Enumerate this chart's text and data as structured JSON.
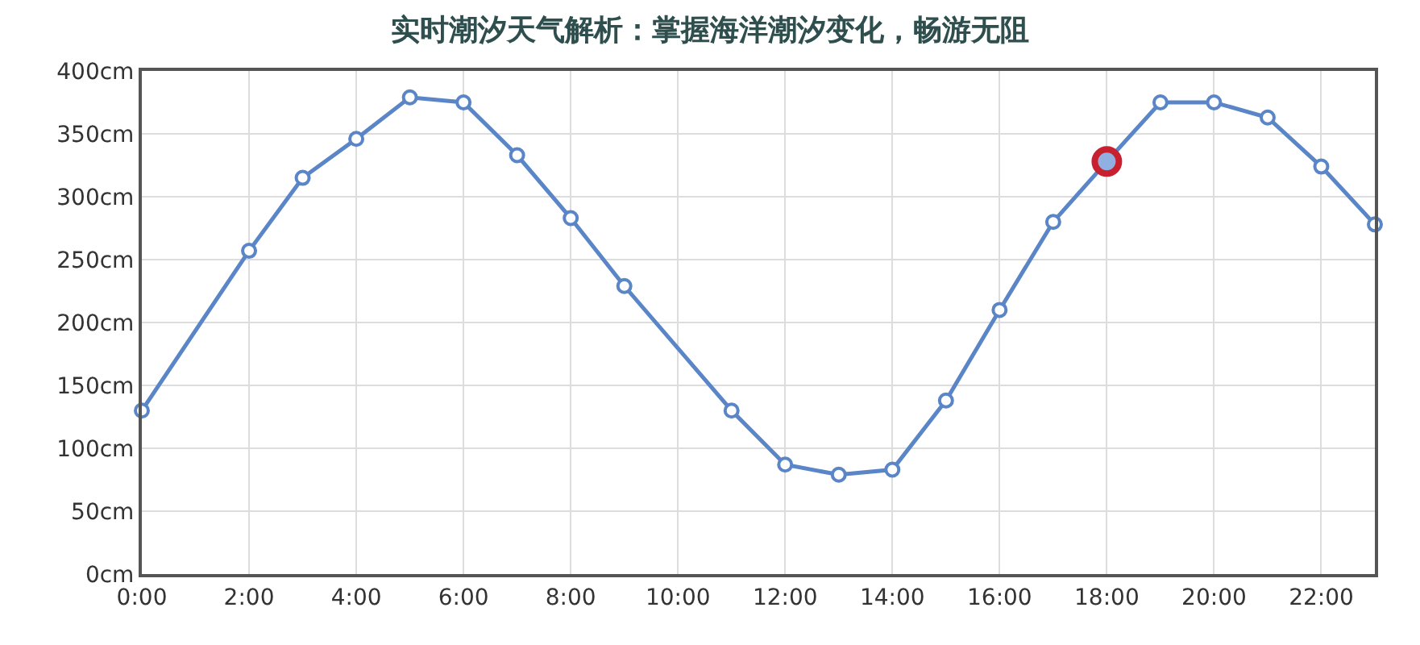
{
  "chart_data": {
    "type": "line",
    "title": "实时潮汐天气解析：掌握海洋潮汐变化，畅游无阻",
    "x": [
      0,
      1,
      2,
      3,
      4,
      5,
      6,
      7,
      8,
      9,
      10,
      11,
      12,
      13,
      14,
      15,
      16,
      17,
      18,
      19,
      20,
      21,
      22,
      23
    ],
    "series": [
      {
        "color": "#5a86c8",
        "values": [
          130,
          null,
          257,
          315,
          346,
          379,
          375,
          333,
          283,
          229,
          null,
          130,
          87,
          79,
          83,
          138,
          210,
          280,
          328,
          375,
          375,
          363,
          324,
          278
        ]
      },
      {
        "type": "scatter",
        "color": "#c8202e",
        "x": [
          18
        ],
        "values": [
          328
        ]
      }
    ],
    "xlim": [
      0,
      23
    ],
    "xticks": [
      {
        "value": 0,
        "label": "0:00"
      },
      {
        "value": 2,
        "label": "2:00"
      },
      {
        "value": 4,
        "label": "4:00"
      },
      {
        "value": 6,
        "label": "6:00"
      },
      {
        "value": 8,
        "label": "8:00"
      },
      {
        "value": 10,
        "label": "10:00"
      },
      {
        "value": 12,
        "label": "12:00"
      },
      {
        "value": 14,
        "label": "14:00"
      },
      {
        "value": 16,
        "label": "16:00"
      },
      {
        "value": 18,
        "label": "18:00"
      },
      {
        "value": 20,
        "label": "20:00"
      },
      {
        "value": 22,
        "label": "22:00"
      }
    ],
    "ylim": [
      0,
      400
    ],
    "yticks": [
      {
        "value": 0,
        "label": "0cm"
      },
      {
        "value": 50,
        "label": "50cm"
      },
      {
        "value": 100,
        "label": "100cm"
      },
      {
        "value": 150,
        "label": "150cm"
      },
      {
        "value": 200,
        "label": "200cm"
      },
      {
        "value": 250,
        "label": "250cm"
      },
      {
        "value": 300,
        "label": "300cm"
      },
      {
        "value": 350,
        "label": "350cm"
      },
      {
        "value": 400,
        "label": "400cm"
      }
    ],
    "grid": true,
    "marker": "circle",
    "line_style": "solid"
  }
}
